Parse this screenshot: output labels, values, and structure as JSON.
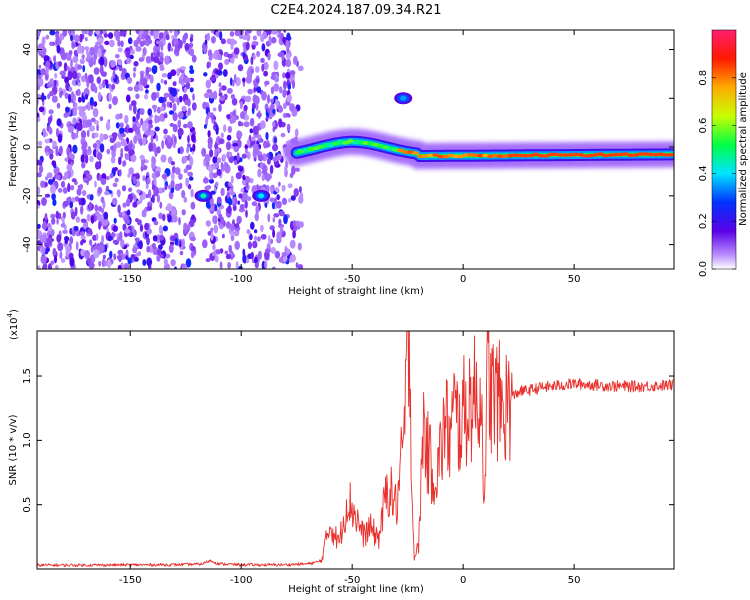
{
  "title": "C2E4.2024.187.09.34.R21",
  "chart_data": [
    {
      "type": "heatmap",
      "xlabel": "Height of straight line (km)",
      "ylabel": "Frequency (Hz)",
      "xlim": [
        -192,
        95
      ],
      "ylim": [
        -50,
        48
      ],
      "x_ticks": [
        -150,
        -100,
        -50,
        0,
        50
      ],
      "y_ticks": [
        -40,
        -20,
        0,
        20,
        40
      ],
      "colorbar": {
        "label": "Normalized spectral amplitude",
        "range": [
          0,
          1
        ],
        "ticks": [
          0.0,
          0.2,
          0.4,
          0.6,
          0.8
        ],
        "colors": [
          "#ffffff",
          "#b98cff",
          "#5a00e6",
          "#0033ff",
          "#00e5ff",
          "#00ff44",
          "#c8ff00",
          "#ffaa00",
          "#ff1a00",
          "#ff1f6e"
        ]
      },
      "noise_region": {
        "x": [
          -192,
          -72
        ],
        "y": [
          -50,
          48
        ],
        "gap_x": [
          -121,
          -117
        ],
        "typical_amplitude": 0.15
      },
      "features": [
        {
          "x_start": -75,
          "x_end": 95,
          "frequency_start": -4,
          "frequency_end": -3,
          "peak_amplitude": 0.85
        },
        {
          "x": -117,
          "frequency": -20,
          "amplitude": 0.45
        },
        {
          "x": -91,
          "frequency": -20,
          "amplitude": 0.4
        },
        {
          "x": -27,
          "frequency": 20,
          "amplitude": 0.35
        }
      ]
    },
    {
      "type": "line",
      "xlabel": "Height of straight line (km)",
      "ylabel": "SNR (10 * v/v)",
      "y_scale_label": "(x10",
      "y_scale_exponent": "4",
      "y_scale_suffix": ")",
      "xlim": [
        -192,
        95
      ],
      "ylim": [
        0,
        18500
      ],
      "x_ticks": [
        -150,
        -100,
        -50,
        0,
        50
      ],
      "y_ticks": [
        5000,
        10000,
        15000
      ],
      "y_tick_labels": [
        "0.5",
        "1.0",
        "1.5"
      ],
      "color": "#e8302c",
      "x": [
        -192,
        -170,
        -150,
        -130,
        -118,
        -114,
        -110,
        -100,
        -90,
        -80,
        -70,
        -64,
        -60,
        -56,
        -52,
        -48,
        -45,
        -42,
        -38,
        -34,
        -30,
        -27,
        -25,
        -24,
        -23,
        -22,
        -20,
        -18,
        -16,
        -14,
        -12,
        -10,
        -8,
        -6,
        -4,
        -2,
        0,
        4,
        8,
        10,
        11,
        12,
        14,
        16,
        18,
        20,
        25,
        30,
        35,
        40,
        50,
        60,
        70,
        80,
        95
      ],
      "y": [
        300,
        300,
        320,
        330,
        380,
        650,
        400,
        330,
        320,
        330,
        400,
        600,
        3500,
        2000,
        5500,
        4000,
        2600,
        3200,
        2400,
        6500,
        4800,
        9500,
        16000,
        18500,
        5000,
        900,
        1800,
        11500,
        9000,
        7800,
        7200,
        9200,
        11600,
        10000,
        12300,
        11000,
        12000,
        13200,
        13500,
        5000,
        16000,
        14000,
        13300,
        13100,
        12200,
        13000,
        13800,
        13900,
        14100,
        14200,
        14400,
        14300,
        14200,
        14200,
        14300
      ]
    }
  ]
}
